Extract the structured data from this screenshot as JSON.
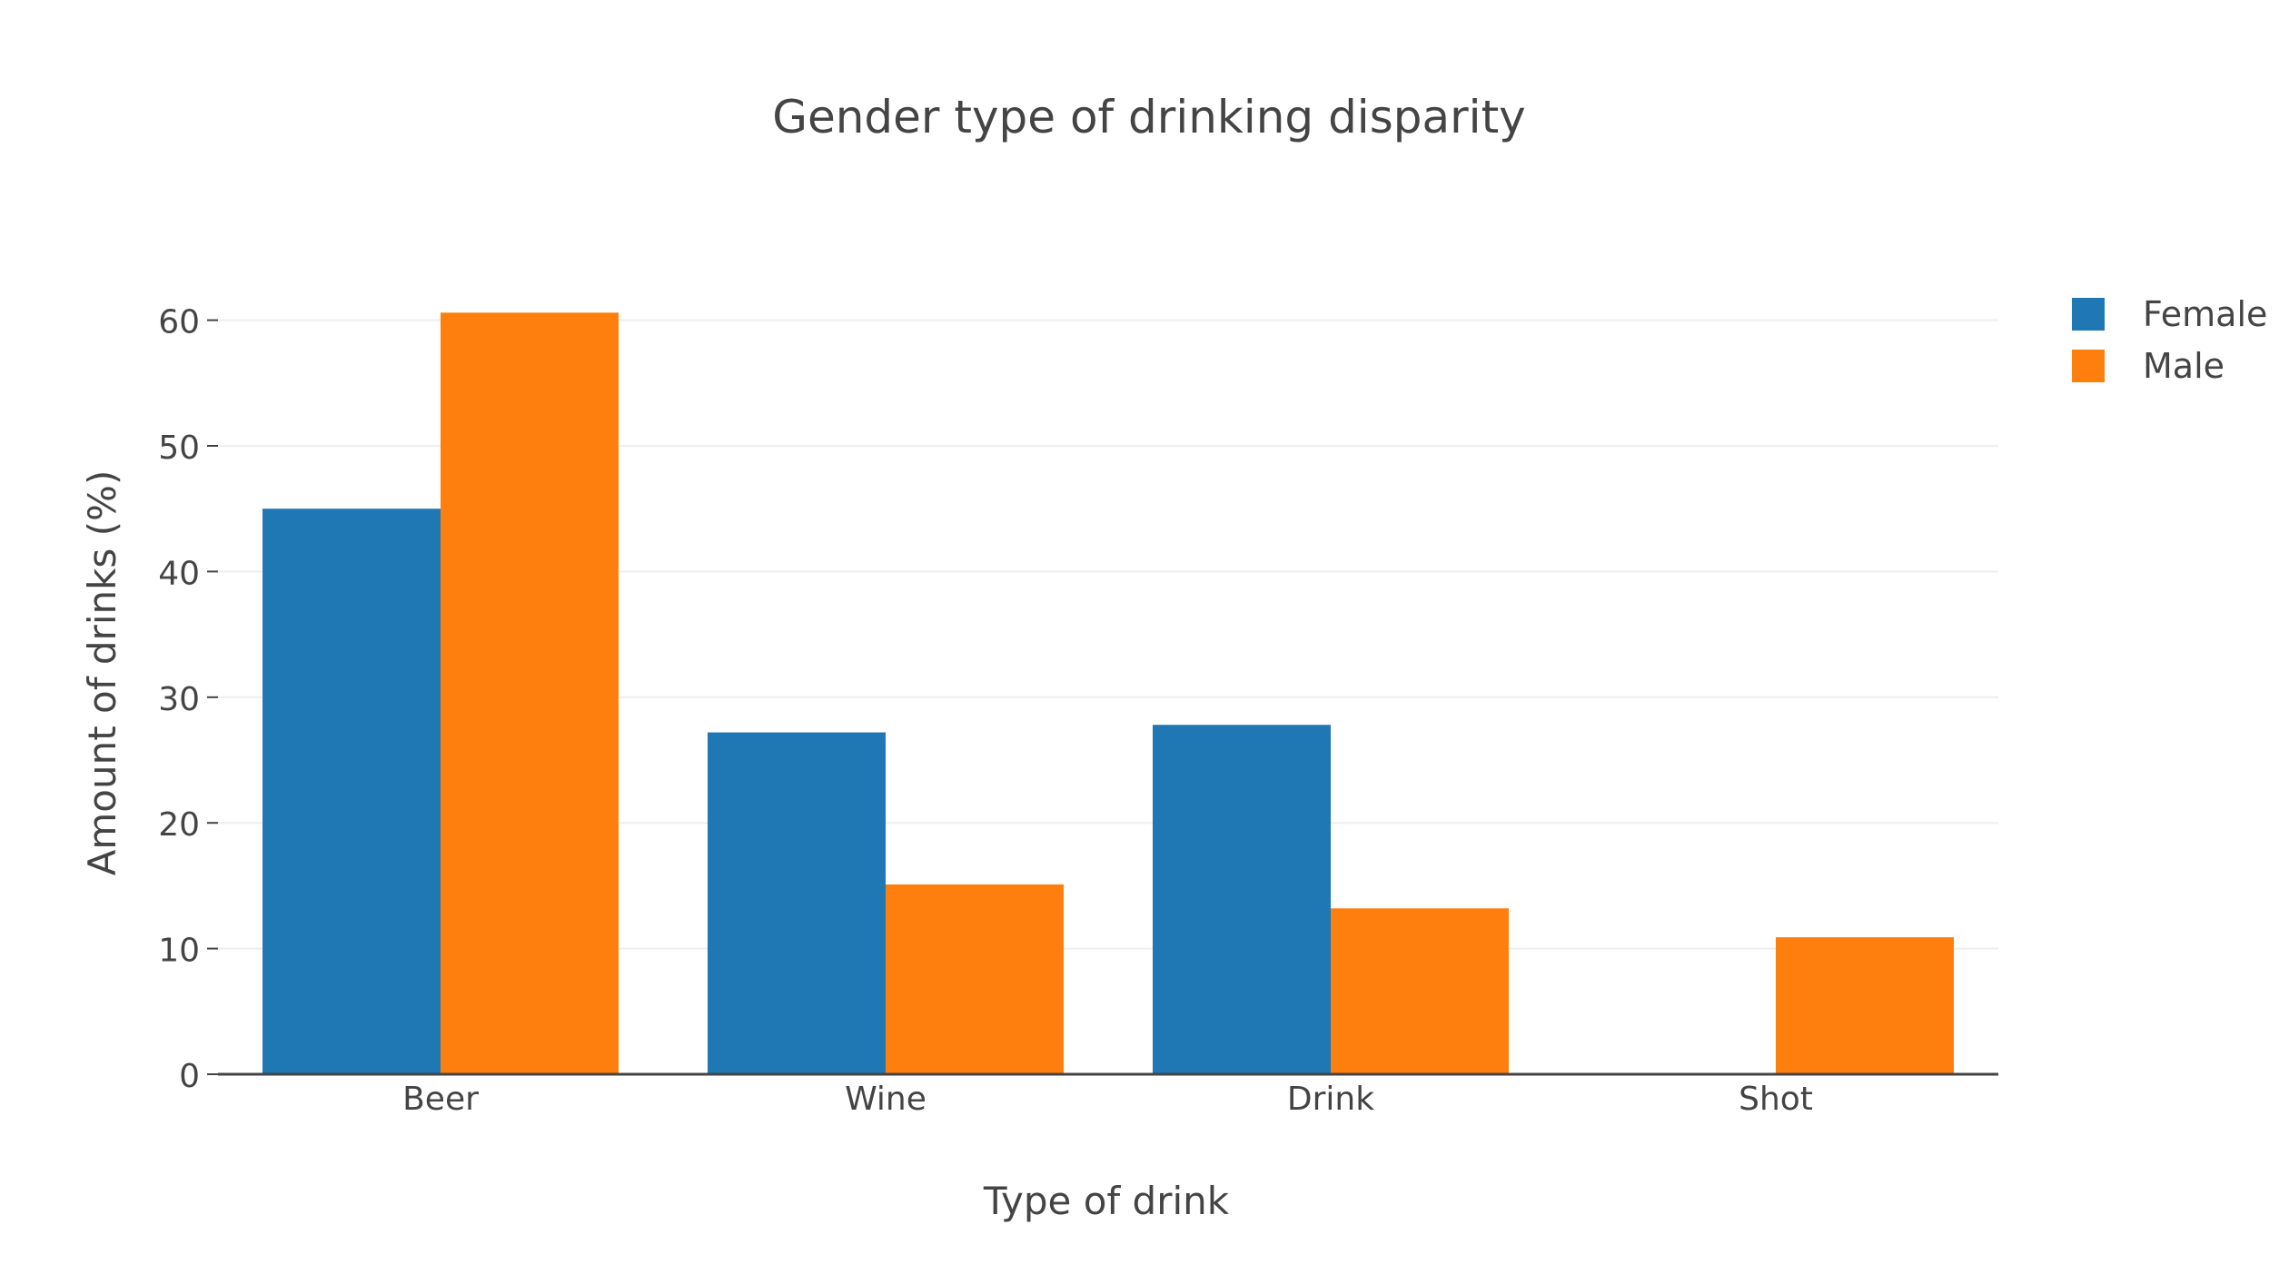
{
  "chart_data": {
    "type": "bar",
    "title": "Gender type of drinking disparity",
    "xlabel": "Type of drink",
    "ylabel": "Amount of drinks (%)",
    "categories": [
      "Beer",
      "Wine",
      "Drink",
      "Shot"
    ],
    "series": [
      {
        "name": "Female",
        "values": [
          45.0,
          27.2,
          27.8,
          0
        ],
        "color": "#1f77b4"
      },
      {
        "name": "Male",
        "values": [
          60.6,
          15.1,
          13.2,
          10.9
        ],
        "color": "#ff7f0e"
      }
    ],
    "ylim": [
      0,
      63.8
    ],
    "yticks": [
      0,
      10,
      20,
      30,
      40,
      50,
      60
    ],
    "grid": true,
    "legend_position": "top-right",
    "colors": {
      "gridline": "#eeeeee",
      "axis_line": "#444444",
      "text": "#444444",
      "background": "#ffffff"
    }
  }
}
